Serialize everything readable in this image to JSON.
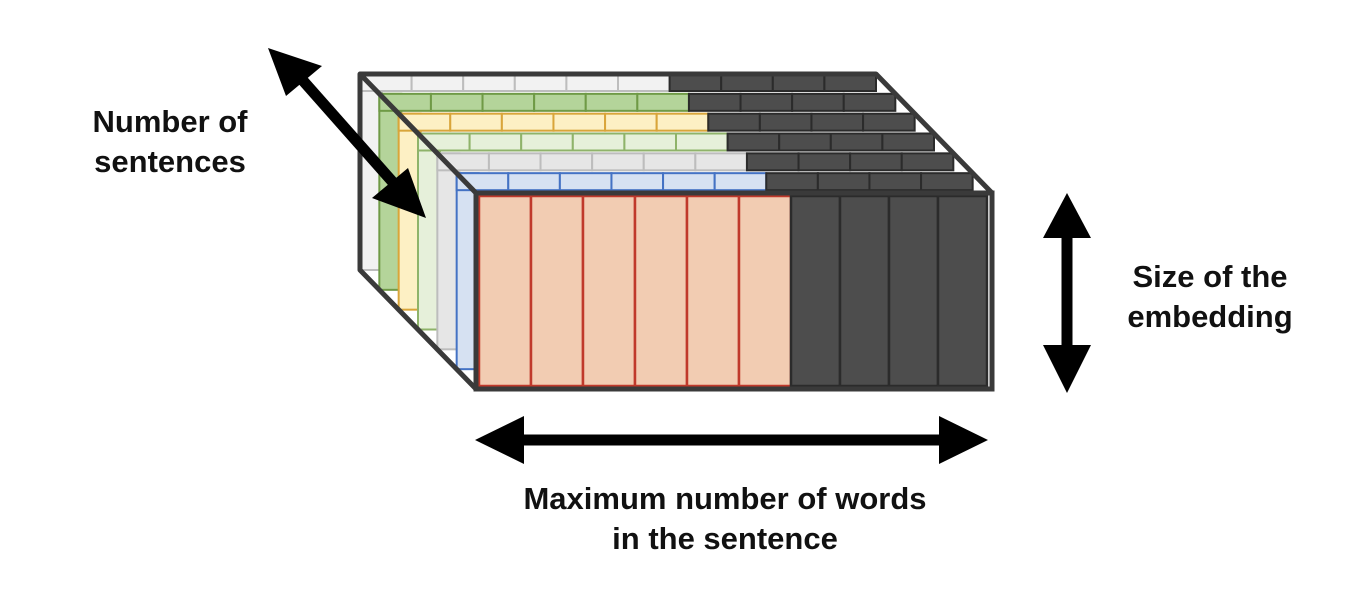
{
  "labels": {
    "number_of_sentences": [
      "Number of",
      "sentences"
    ],
    "size_of_embedding": [
      "Size of the",
      "embedding"
    ],
    "max_words": [
      "Maximum number of words",
      "in the sentence"
    ]
  },
  "colors": {
    "outline": "#3a3a3a",
    "padding_fill": "#4d4d4d",
    "front_fill": "#f2ccb2",
    "front_stroke": "#c0392b",
    "layers": [
      {
        "fill": "#f2f2f2",
        "stroke": "#bdbdbd"
      },
      {
        "fill": "#b4d49a",
        "stroke": "#6f9a46"
      },
      {
        "fill": "#fdf0c4",
        "stroke": "#d9a53a"
      },
      {
        "fill": "#e6f0da",
        "stroke": "#8fb36a"
      },
      {
        "fill": "#e6e6e6",
        "stroke": "#bdbdbd"
      },
      {
        "fill": "#d6e1f2",
        "stroke": "#4472c4"
      }
    ]
  },
  "structure": {
    "word_cells": 6,
    "padding_cells": 4,
    "stacked_layers": 6
  }
}
